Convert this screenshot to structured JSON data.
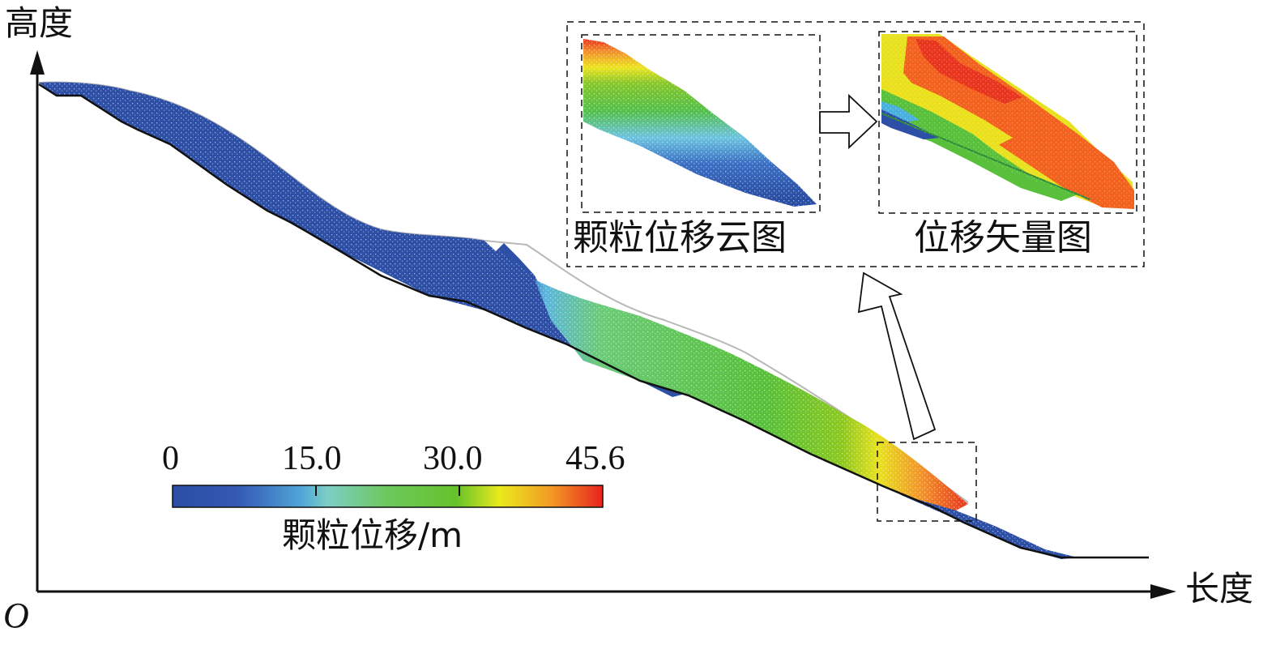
{
  "axes": {
    "y_label": "高度",
    "x_label": "长度",
    "origin_label": "O"
  },
  "colorbar": {
    "ticks": [
      "0",
      "15.0",
      "30.0",
      "45.6"
    ],
    "tick_values": [
      0,
      15.0,
      30.0,
      45.6
    ],
    "max_value": 45.6,
    "title": "颗粒位移/m",
    "colors": [
      "#2a4ea3",
      "#3d6fc8",
      "#55b4e8",
      "#7ccfb4",
      "#58c44a",
      "#72c42a",
      "#eaea1c",
      "#f29a24",
      "#e8221e"
    ]
  },
  "insets": {
    "left_label": "颗粒位移云图",
    "right_label": "位移矢量图"
  },
  "colors": {
    "low": "#2a4ea3",
    "mid_low": "#4fa6d8",
    "mid": "#52c040",
    "high_mid": "#e8e02a",
    "high": "#e8351e",
    "orange": "#f26a1e",
    "outline": "#b5b5b5"
  }
}
